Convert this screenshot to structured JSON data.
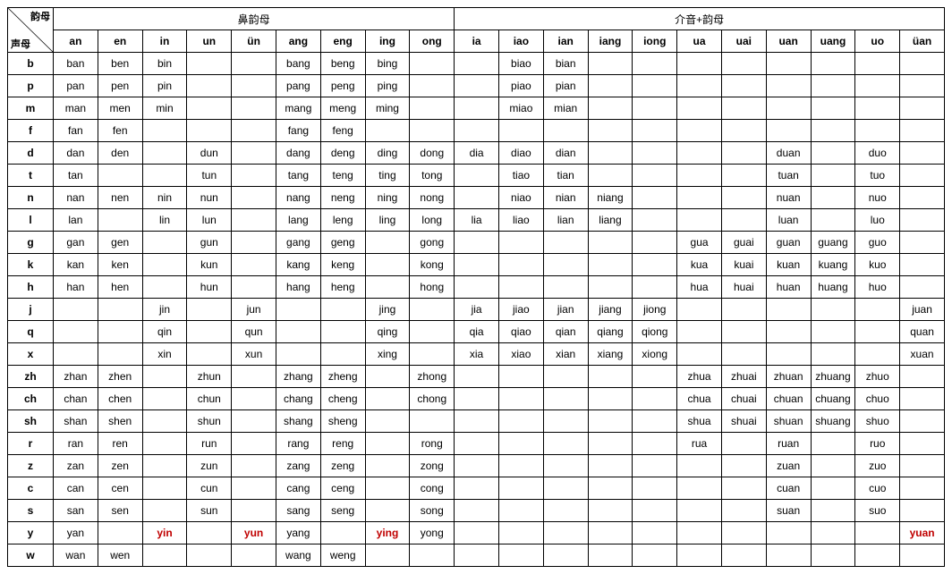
{
  "corner": {
    "top": "韵母",
    "bottom": "声母"
  },
  "groups": [
    {
      "label": "鼻韵母",
      "span": 9
    },
    {
      "label": "介音+韵母",
      "span": 11
    }
  ],
  "finals": [
    "an",
    "en",
    "in",
    "un",
    "ün",
    "ang",
    "eng",
    "ing",
    "ong",
    "ia",
    "iao",
    "ian",
    "iang",
    "iong",
    "ua",
    "uai",
    "uan",
    "uang",
    "uo",
    "üan"
  ],
  "initials": [
    "b",
    "p",
    "m",
    "f",
    "d",
    "t",
    "n",
    "l",
    "g",
    "k",
    "h",
    "j",
    "q",
    "x",
    "zh",
    "ch",
    "sh",
    "r",
    "z",
    "c",
    "s",
    "y",
    "w"
  ],
  "highlight": [
    "yin",
    "yun",
    "ying",
    "yuan"
  ],
  "cells": {
    "b": {
      "an": "ban",
      "en": "ben",
      "in": "bin",
      "ang": "bang",
      "eng": "beng",
      "ing": "bing",
      "iao": "biao",
      "ian": "bian"
    },
    "p": {
      "an": "pan",
      "en": "pen",
      "in": "pin",
      "ang": "pang",
      "eng": "peng",
      "ing": "ping",
      "iao": "piao",
      "ian": "pian"
    },
    "m": {
      "an": "man",
      "en": "men",
      "in": "min",
      "ang": "mang",
      "eng": "meng",
      "ing": "ming",
      "iao": "miao",
      "ian": "mian"
    },
    "f": {
      "an": "fan",
      "en": "fen",
      "ang": "fang",
      "eng": "feng"
    },
    "d": {
      "an": "dan",
      "en": "den",
      "un": "dun",
      "ang": "dang",
      "eng": "deng",
      "ing": "ding",
      "ong": "dong",
      "ia": "dia",
      "iao": "diao",
      "ian": "dian",
      "uan": "duan",
      "uo": "duo"
    },
    "t": {
      "an": "tan",
      "un": "tun",
      "ang": "tang",
      "eng": "teng",
      "ing": "ting",
      "ong": "tong",
      "iao": "tiao",
      "ian": "tian",
      "uan": "tuan",
      "uo": "tuo"
    },
    "n": {
      "an": "nan",
      "en": "nen",
      "in": "nin",
      "un": "nun",
      "ang": "nang",
      "eng": "neng",
      "ing": "ning",
      "ong": "nong",
      "iao": "niao",
      "ian": "nian",
      "iang": "niang",
      "uan": "nuan",
      "uo": "nuo"
    },
    "l": {
      "an": "lan",
      "in": "lin",
      "un": "lun",
      "ang": "lang",
      "eng": "leng",
      "ing": "ling",
      "ong": "long",
      "ia": "lia",
      "iao": "liao",
      "ian": "lian",
      "iang": "liang",
      "uan": "luan",
      "uo": "luo"
    },
    "g": {
      "an": "gan",
      "en": "gen",
      "un": "gun",
      "ang": "gang",
      "eng": "geng",
      "ong": "gong",
      "ua": "gua",
      "uai": "guai",
      "uan": "guan",
      "uang": "guang",
      "uo": "guo"
    },
    "k": {
      "an": "kan",
      "en": "ken",
      "un": "kun",
      "ang": "kang",
      "eng": "keng",
      "ong": "kong",
      "ua": "kua",
      "uai": "kuai",
      "uan": "kuan",
      "uang": "kuang",
      "uo": "kuo"
    },
    "h": {
      "an": "han",
      "en": "hen",
      "un": "hun",
      "ang": "hang",
      "eng": "heng",
      "ong": "hong",
      "ua": "hua",
      "uai": "huai",
      "uan": "huan",
      "uang": "huang",
      "uo": "huo"
    },
    "j": {
      "in": "jin",
      "ün": "jun",
      "ing": "jing",
      "ia": "jia",
      "iao": "jiao",
      "ian": "jian",
      "iang": "jiang",
      "iong": "jiong",
      "üan": "juan"
    },
    "q": {
      "in": "qin",
      "ün": "qun",
      "ing": "qing",
      "ia": "qia",
      "iao": "qiao",
      "ian": "qian",
      "iang": "qiang",
      "iong": "qiong",
      "üan": "quan"
    },
    "x": {
      "in": "xin",
      "ün": "xun",
      "ing": "xing",
      "ia": "xia",
      "iao": "xiao",
      "ian": "xian",
      "iang": "xiang",
      "iong": "xiong",
      "üan": "xuan"
    },
    "zh": {
      "an": "zhan",
      "en": "zhen",
      "un": "zhun",
      "ang": "zhang",
      "eng": "zheng",
      "ong": "zhong",
      "ua": "zhua",
      "uai": "zhuai",
      "uan": "zhuan",
      "uang": "zhuang",
      "uo": "zhuo"
    },
    "ch": {
      "an": "chan",
      "en": "chen",
      "un": "chun",
      "ang": "chang",
      "eng": "cheng",
      "ong": "chong",
      "ua": "chua",
      "uai": "chuai",
      "uan": "chuan",
      "uang": "chuang",
      "uo": "chuo"
    },
    "sh": {
      "an": "shan",
      "en": "shen",
      "un": "shun",
      "ang": "shang",
      "eng": "sheng",
      "ua": "shua",
      "uai": "shuai",
      "uan": "shuan",
      "uang": "shuang",
      "uo": "shuo"
    },
    "r": {
      "an": "ran",
      "en": "ren",
      "un": "run",
      "ang": "rang",
      "eng": "reng",
      "ong": "rong",
      "ua": "rua",
      "uan": "ruan",
      "uo": "ruo"
    },
    "z": {
      "an": "zan",
      "en": "zen",
      "un": "zun",
      "ang": "zang",
      "eng": "zeng",
      "ong": "zong",
      "uan": "zuan",
      "uo": "zuo"
    },
    "c": {
      "an": "can",
      "en": "cen",
      "un": "cun",
      "ang": "cang",
      "eng": "ceng",
      "ong": "cong",
      "uan": "cuan",
      "uo": "cuo"
    },
    "s": {
      "an": "san",
      "en": "sen",
      "un": "sun",
      "ang": "sang",
      "eng": "seng",
      "ong": "song",
      "uan": "suan",
      "uo": "suo"
    },
    "y": {
      "an": "yan",
      "in": "yin",
      "ün": "yun",
      "ang": "yang",
      "ing": "ying",
      "ong": "yong",
      "üan": "yuan"
    },
    "w": {
      "an": "wan",
      "en": "wen",
      "ang": "wang",
      "eng": "weng"
    }
  },
  "style": {
    "font_size": 12,
    "border_color": "#000000",
    "background": "#ffffff",
    "text_color": "#000000",
    "highlight_color": "#c00000"
  }
}
